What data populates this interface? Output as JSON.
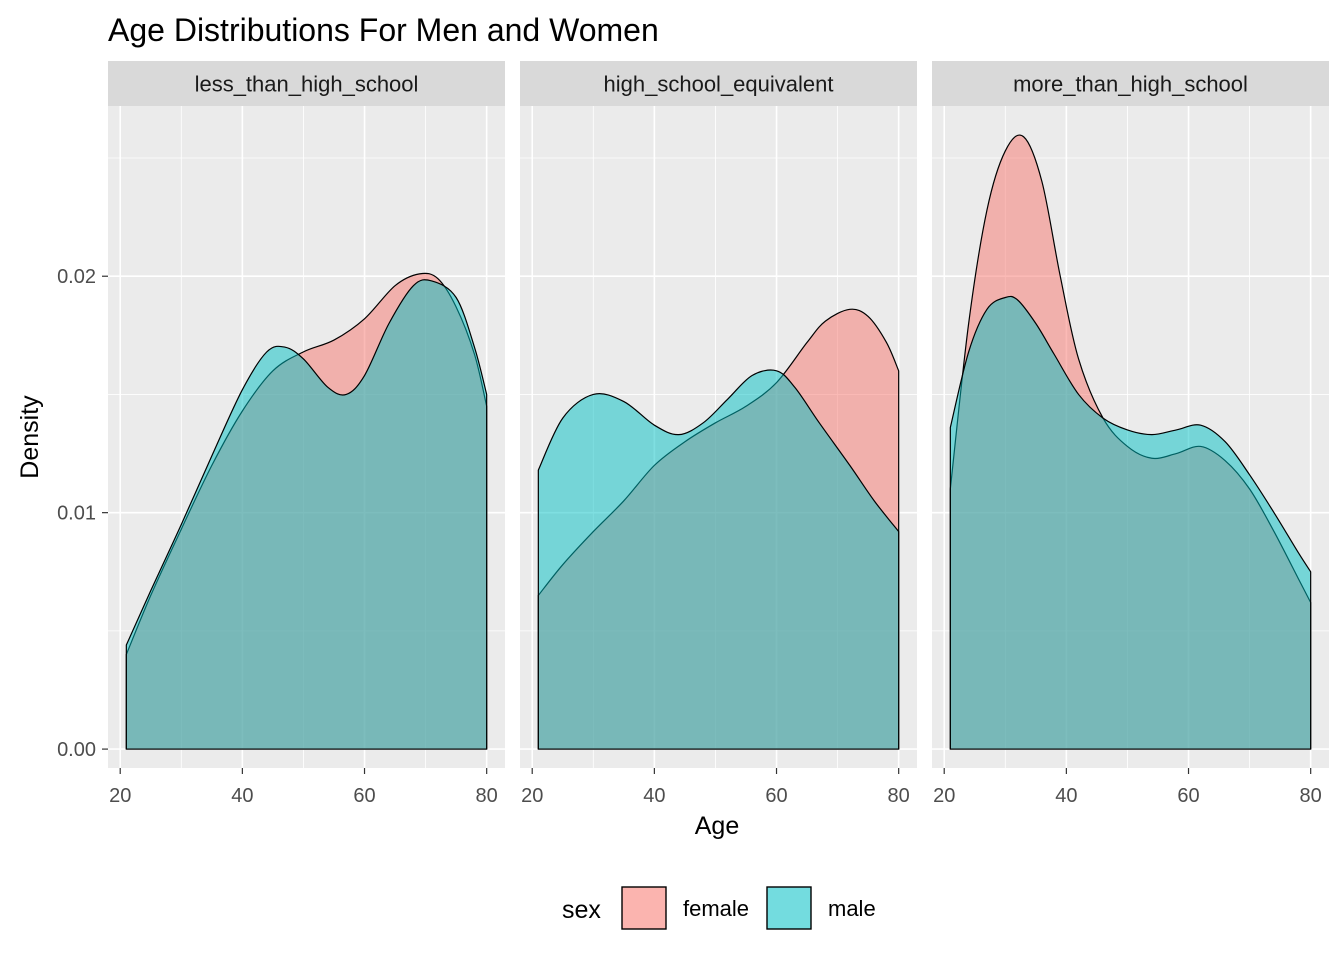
{
  "chart_data": {
    "type": "area",
    "title": "Age Distributions For Men and Women",
    "xlabel": "Age",
    "ylabel": "Density",
    "xlim": [
      18,
      83
    ],
    "ylim": [
      -0.0008,
      0.0272
    ],
    "x_ticks": [
      20,
      40,
      60,
      80
    ],
    "x_tick_labels": [
      "20",
      "40",
      "60",
      "80"
    ],
    "y_ticks": [
      0.0,
      0.01,
      0.02
    ],
    "y_tick_labels": [
      "0.00",
      "0.01",
      "0.02"
    ],
    "grid": true,
    "legend": {
      "title": "sex",
      "position": "bottom",
      "entries": [
        {
          "name": "female",
          "color": "#F8766D"
        },
        {
          "name": "male",
          "color": "#00BFC4"
        }
      ]
    },
    "panels": [
      {
        "facet": "less_than_high_school",
        "series": [
          {
            "name": "female",
            "x": [
              21,
              25,
              30,
              35,
              40,
              45,
              50,
              55,
              60,
              65,
              69,
              72,
              75,
              78,
              80
            ],
            "y": [
              0.004,
              0.0065,
              0.0093,
              0.012,
              0.0143,
              0.016,
              0.0168,
              0.0173,
              0.0182,
              0.0196,
              0.0201,
              0.0199,
              0.0187,
              0.0167,
              0.0145
            ]
          },
          {
            "name": "male",
            "x": [
              21,
              25,
              30,
              35,
              40,
              44,
              47,
              50,
              54,
              57,
              60,
              64,
              68,
              71,
              75,
              78,
              80
            ],
            "y": [
              0.0044,
              0.0067,
              0.0095,
              0.0124,
              0.0152,
              0.0168,
              0.017,
              0.0165,
              0.0153,
              0.015,
              0.0158,
              0.018,
              0.0196,
              0.0198,
              0.0191,
              0.017,
              0.015
            ]
          }
        ]
      },
      {
        "facet": "high_school_equivalent",
        "series": [
          {
            "name": "female",
            "x": [
              21,
              25,
              30,
              35,
              40,
              45,
              50,
              55,
              60,
              65,
              68,
              72,
              75,
              78,
              80
            ],
            "y": [
              0.0065,
              0.0078,
              0.0092,
              0.0105,
              0.012,
              0.013,
              0.0138,
              0.0145,
              0.0155,
              0.0172,
              0.0181,
              0.0186,
              0.0183,
              0.0172,
              0.016
            ]
          },
          {
            "name": "male",
            "x": [
              21,
              25,
              30,
              35,
              40,
              44,
              48,
              52,
              56,
              60,
              63,
              67,
              72,
              76,
              80
            ],
            "y": [
              0.0118,
              0.014,
              0.015,
              0.0147,
              0.0137,
              0.0133,
              0.0138,
              0.0148,
              0.0158,
              0.016,
              0.0153,
              0.0138,
              0.012,
              0.0105,
              0.0092
            ]
          }
        ]
      },
      {
        "facet": "more_than_high_school",
        "series": [
          {
            "name": "female",
            "x": [
              21,
              24,
              27,
              30,
              33,
              36,
              39,
              42,
              46,
              50,
              54,
              58,
              62,
              66,
              70,
              74,
              78,
              80
            ],
            "y": [
              0.011,
              0.018,
              0.0228,
              0.0253,
              0.0259,
              0.024,
              0.02,
              0.0165,
              0.014,
              0.0128,
              0.0123,
              0.0125,
              0.0128,
              0.0122,
              0.011,
              0.0092,
              0.0072,
              0.0062
            ]
          },
          {
            "name": "male",
            "x": [
              21,
              24,
              27,
              30,
              32,
              35,
              38,
              42,
              46,
              50,
              54,
              58,
              62,
              66,
              70,
              74,
              78,
              80
            ],
            "y": [
              0.0136,
              0.0168,
              0.0186,
              0.0191,
              0.019,
              0.018,
              0.0167,
              0.015,
              0.014,
              0.0135,
              0.0133,
              0.0135,
              0.0137,
              0.013,
              0.0116,
              0.01,
              0.0083,
              0.0075
            ]
          }
        ]
      }
    ]
  }
}
